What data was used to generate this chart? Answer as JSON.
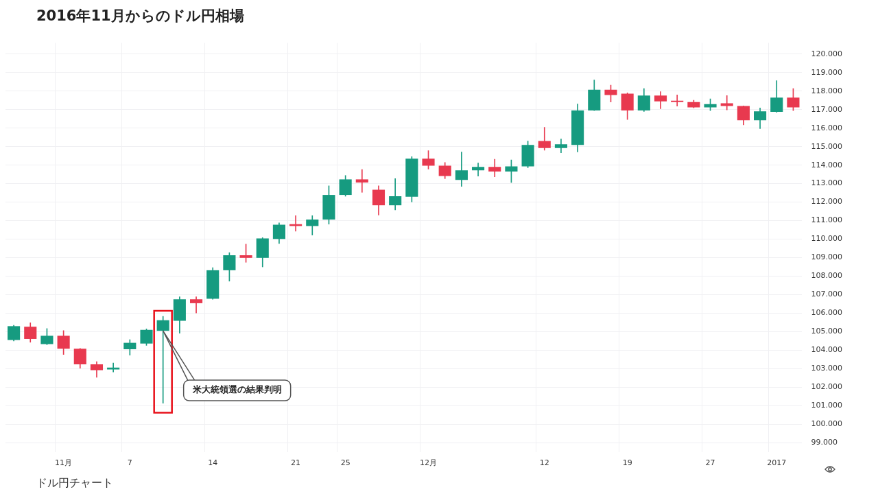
{
  "chart_data": {
    "type": "candlestick",
    "title": "2016年11月からのドル円相場",
    "categories": [
      null,
      null,
      null,
      "11月",
      null,
      null,
      null,
      "7",
      null,
      null,
      null,
      null,
      "14",
      null,
      null,
      null,
      null,
      "21",
      null,
      null,
      "25",
      null,
      null,
      null,
      null,
      "12月",
      null,
      null,
      null,
      null,
      null,
      null,
      "12",
      null,
      null,
      null,
      null,
      "19",
      null,
      null,
      null,
      null,
      "27",
      null,
      null,
      null,
      "2017",
      null
    ],
    "ohlc": [
      [
        104.55,
        105.35,
        104.5,
        105.3
      ],
      [
        105.27,
        105.48,
        104.43,
        104.61
      ],
      [
        104.33,
        105.17,
        104.3,
        104.78
      ],
      [
        104.78,
        105.06,
        103.77,
        104.08
      ],
      [
        104.08,
        104.1,
        103.03,
        103.24
      ],
      [
        103.24,
        103.38,
        102.54,
        102.92
      ],
      [
        102.96,
        103.31,
        102.82,
        103.06
      ],
      [
        104.05,
        104.57,
        103.73,
        104.4
      ],
      [
        104.36,
        105.15,
        104.26,
        105.1
      ],
      [
        105.05,
        105.83,
        101.14,
        105.62
      ],
      [
        105.59,
        106.89,
        104.92,
        106.75
      ],
      [
        106.75,
        106.89,
        106.01,
        106.54
      ],
      [
        106.78,
        108.46,
        106.75,
        108.32
      ],
      [
        108.32,
        109.27,
        107.73,
        109.13
      ],
      [
        109.13,
        109.73,
        108.75,
        108.99
      ],
      [
        108.99,
        110.08,
        108.5,
        110.04
      ],
      [
        110.01,
        110.88,
        109.76,
        110.78
      ],
      [
        110.81,
        111.27,
        110.43,
        110.71
      ],
      [
        110.71,
        111.27,
        110.22,
        111.06
      ],
      [
        111.06,
        112.88,
        110.81,
        112.39
      ],
      [
        112.39,
        113.44,
        112.32,
        113.23
      ],
      [
        113.23,
        113.76,
        112.53,
        113.06
      ],
      [
        112.67,
        112.88,
        111.3,
        111.83
      ],
      [
        111.83,
        113.27,
        111.58,
        112.32
      ],
      [
        112.29,
        114.46,
        112.01,
        114.35
      ],
      [
        114.35,
        114.78,
        113.79,
        113.97
      ],
      [
        113.97,
        114.14,
        113.27,
        113.41
      ],
      [
        113.2,
        114.71,
        112.85,
        113.72
      ],
      [
        113.72,
        114.11,
        113.41,
        113.9
      ],
      [
        113.9,
        114.32,
        113.37,
        113.65
      ],
      [
        113.65,
        114.28,
        113.06,
        113.93
      ],
      [
        113.93,
        115.3,
        113.86,
        115.09
      ],
      [
        115.3,
        116.04,
        114.81,
        114.92
      ],
      [
        114.92,
        115.41,
        114.67,
        115.13
      ],
      [
        115.09,
        117.3,
        114.71,
        116.95
      ],
      [
        116.95,
        118.6,
        116.95,
        118.07
      ],
      [
        118.07,
        118.32,
        117.41,
        117.79
      ],
      [
        117.86,
        117.9,
        116.46,
        116.95
      ],
      [
        116.95,
        118.14,
        116.9,
        117.76
      ],
      [
        117.76,
        117.97,
        117.05,
        117.44
      ],
      [
        117.44,
        117.79,
        117.19,
        117.41
      ],
      [
        117.41,
        117.51,
        117.09,
        117.12
      ],
      [
        117.12,
        117.58,
        116.95,
        117.3
      ],
      [
        117.34,
        117.76,
        116.98,
        117.19
      ],
      [
        117.19,
        117.2,
        116.18,
        116.42
      ],
      [
        116.42,
        117.09,
        115.97,
        116.91
      ],
      [
        116.88,
        118.56,
        116.85,
        117.65
      ],
      [
        117.65,
        118.14,
        116.95,
        117.12
      ]
    ],
    "colors": [
      "#169b80",
      "#e8394f",
      "#169b80",
      "#e8394f",
      "#e8394f",
      "#e8394f",
      "#169b80",
      "#169b80",
      "#169b80",
      "#169b80",
      "#169b80",
      "#e8394f",
      "#169b80",
      "#169b80",
      "#e8394f",
      "#169b80",
      "#169b80",
      "#e8394f",
      "#169b80",
      "#169b80",
      "#169b80",
      "#e8394f",
      "#e8394f",
      "#169b80",
      "#169b80",
      "#e8394f",
      "#e8394f",
      "#169b80",
      "#169b80",
      "#e8394f",
      "#169b80",
      "#169b80",
      "#e8394f",
      "#169b80",
      "#169b80",
      "#169b80",
      "#e8394f",
      "#e8394f",
      "#169b80",
      "#e8394f",
      "#e8394f",
      "#e8394f",
      "#169b80",
      "#e8394f",
      "#e8394f",
      "#169b80",
      "#169b80",
      "#e8394f"
    ],
    "ylim": [
      98.5,
      120.6
    ],
    "yticks": [
      {
        "value": 99,
        "label": "99.000"
      },
      {
        "value": 100,
        "label": "100.000"
      },
      {
        "value": 101,
        "label": "101.000"
      },
      {
        "value": 102,
        "label": "102.000"
      },
      {
        "value": 103,
        "label": "103.000"
      },
      {
        "value": 104,
        "label": "104.000"
      },
      {
        "value": 105,
        "label": "105.000"
      },
      {
        "value": 106,
        "label": "106.000"
      },
      {
        "value": 107,
        "label": "107.000"
      },
      {
        "value": 108,
        "label": "108.000"
      },
      {
        "value": 109,
        "label": "109.000"
      },
      {
        "value": 110,
        "label": "110.000"
      },
      {
        "value": 111,
        "label": "111.000"
      },
      {
        "value": 112,
        "label": "112.000"
      },
      {
        "value": 113,
        "label": "113.000"
      },
      {
        "value": 114,
        "label": "114.000"
      },
      {
        "value": 115,
        "label": "115.000"
      },
      {
        "value": 116,
        "label": "116.000"
      },
      {
        "value": 117,
        "label": "117.000"
      },
      {
        "value": 118,
        "label": "118.000"
      },
      {
        "value": 119,
        "label": "119.000"
      },
      {
        "value": 120,
        "label": "120.000"
      }
    ],
    "grid": true,
    "annotations": [
      "米大統領選の結果判明",
      "ドル円チャート"
    ]
  }
}
